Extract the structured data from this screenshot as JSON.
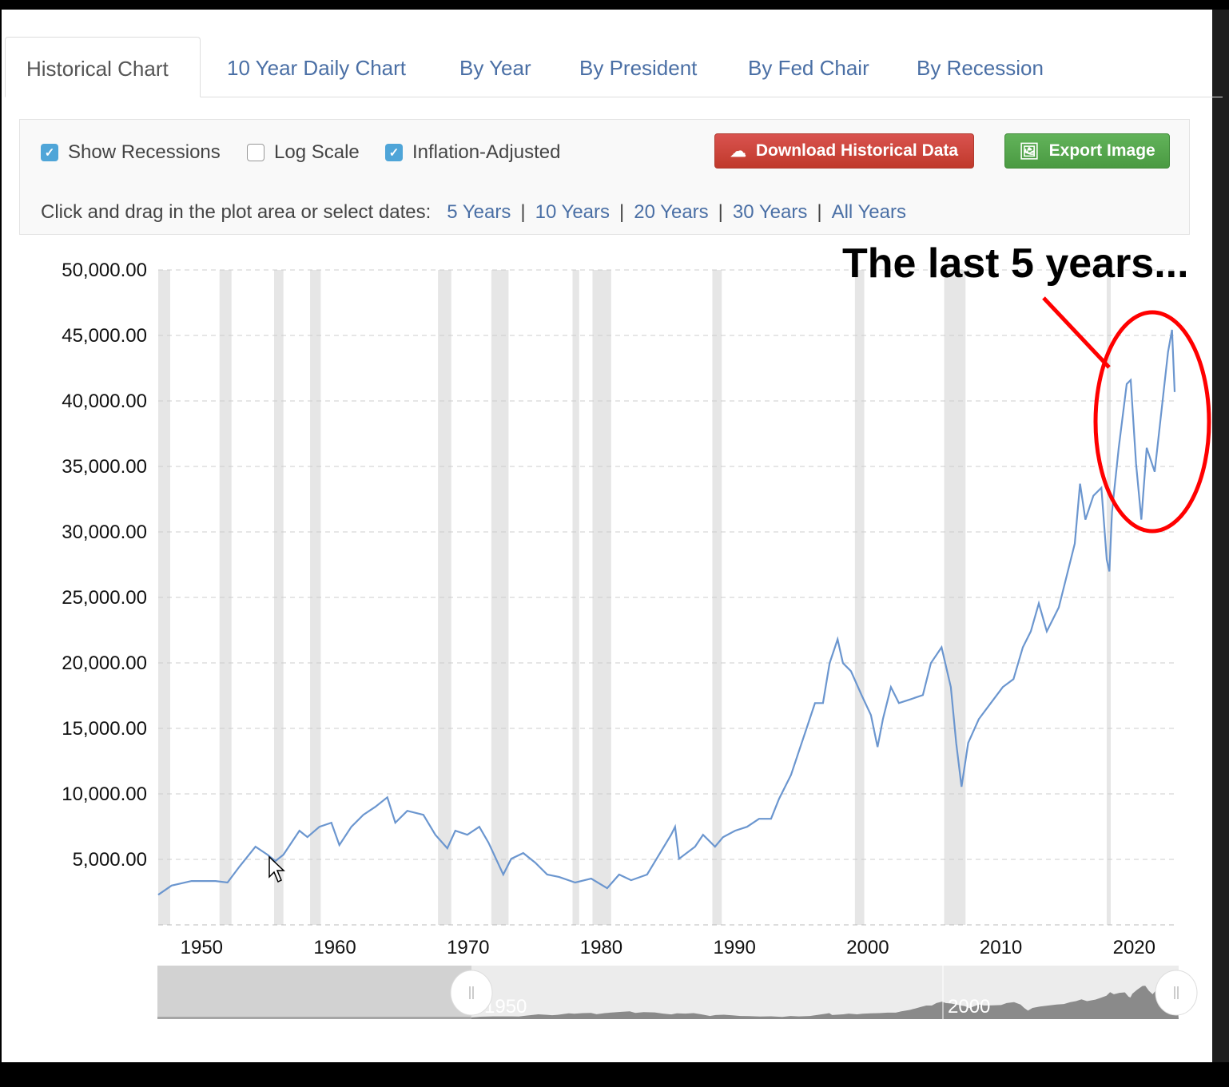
{
  "tabs": [
    {
      "label": "Historical Chart",
      "active": true
    },
    {
      "label": "10 Year Daily Chart",
      "active": false
    },
    {
      "label": "By Year",
      "active": false
    },
    {
      "label": "By President",
      "active": false
    },
    {
      "label": "By Fed Chair",
      "active": false
    },
    {
      "label": "By Recession",
      "active": false
    }
  ],
  "controls": {
    "show_recessions": {
      "label": "Show Recessions",
      "checked": true
    },
    "log_scale": {
      "label": "Log Scale",
      "checked": false
    },
    "inflation_adjusted": {
      "label": "Inflation-Adjusted",
      "checked": true
    },
    "download_label": "Download Historical Data",
    "download_icon": "cloud-download-icon",
    "export_label": "Export Image",
    "export_icon": "image-icon",
    "download_color": "#d9534f",
    "export_color": "#5cb85c",
    "range_prompt": "Click and drag in the plot area or select dates:",
    "ranges": [
      "5 Years",
      "10 Years",
      "20 Years",
      "30 Years",
      "All Years"
    ],
    "separator": "|"
  },
  "annotation": {
    "text": "The last 5 years...",
    "color": "#ff0000"
  },
  "navigator": {
    "labels": [
      "1950",
      "2000"
    ]
  },
  "chart_data": {
    "type": "line",
    "title": "",
    "xlabel": "",
    "ylabel": "",
    "line_color": "#6b96cf",
    "recession_color": "#e6e6e6",
    "grid": "horizontal-dashed",
    "log_scale": false,
    "xlim": [
      1948.9,
      2025.2
    ],
    "ylim": [
      0,
      50000
    ],
    "x_ticks": [
      "1950",
      "1960",
      "1970",
      "1980",
      "1990",
      "2000",
      "2010",
      "2020"
    ],
    "y_ticks": [
      "5,000.00",
      "10,000.00",
      "15,000.00",
      "20,000.00",
      "25,000.00",
      "30,000.00",
      "35,000.00",
      "40,000.00",
      "45,000.00",
      "50,000.00"
    ],
    "recessions": [
      [
        1948.9,
        1949.8
      ],
      [
        1953.5,
        1954.4
      ],
      [
        1957.6,
        1958.3
      ],
      [
        1960.3,
        1961.1
      ],
      [
        1969.9,
        1970.9
      ],
      [
        1973.9,
        1975.2
      ],
      [
        1980.0,
        1980.5
      ],
      [
        1981.5,
        1982.9
      ],
      [
        1990.5,
        1991.2
      ],
      [
        2001.2,
        2001.9
      ],
      [
        2007.9,
        2009.5
      ],
      [
        2020.1,
        2020.3
      ]
    ],
    "series": [
      {
        "points": [
          [
            1948.9,
            2300
          ],
          [
            1949.9,
            3000
          ],
          [
            1951.4,
            3350
          ],
          [
            1953.2,
            3350
          ],
          [
            1954.1,
            3230
          ],
          [
            1955.0,
            4450
          ],
          [
            1956.2,
            5970
          ],
          [
            1957.1,
            5360
          ],
          [
            1957.7,
            4870
          ],
          [
            1958.3,
            5360
          ],
          [
            1959.5,
            7190
          ],
          [
            1960.1,
            6700
          ],
          [
            1961.0,
            7490
          ],
          [
            1961.9,
            7800
          ],
          [
            1962.5,
            6090
          ],
          [
            1963.4,
            7490
          ],
          [
            1964.3,
            8400
          ],
          [
            1965.2,
            9010
          ],
          [
            1966.1,
            9740
          ],
          [
            1966.7,
            7800
          ],
          [
            1967.6,
            8710
          ],
          [
            1968.8,
            8400
          ],
          [
            1969.7,
            6880
          ],
          [
            1970.6,
            5850
          ],
          [
            1971.2,
            7190
          ],
          [
            1972.1,
            6880
          ],
          [
            1973.0,
            7490
          ],
          [
            1973.7,
            6270
          ],
          [
            1974.8,
            3840
          ],
          [
            1975.4,
            5050
          ],
          [
            1976.3,
            5480
          ],
          [
            1977.2,
            4750
          ],
          [
            1978.1,
            3840
          ],
          [
            1979.0,
            3650
          ],
          [
            1980.2,
            3230
          ],
          [
            1981.4,
            3530
          ],
          [
            1982.6,
            2800
          ],
          [
            1983.5,
            3840
          ],
          [
            1984.4,
            3410
          ],
          [
            1985.6,
            3840
          ],
          [
            1986.5,
            5360
          ],
          [
            1987.4,
            6880
          ],
          [
            1987.7,
            7490
          ],
          [
            1988.0,
            5050
          ],
          [
            1989.2,
            5970
          ],
          [
            1989.8,
            6880
          ],
          [
            1990.7,
            5970
          ],
          [
            1991.3,
            6700
          ],
          [
            1992.2,
            7190
          ],
          [
            1993.1,
            7490
          ],
          [
            1994.0,
            8100
          ],
          [
            1994.9,
            8100
          ],
          [
            1995.5,
            9620
          ],
          [
            1996.4,
            11450
          ],
          [
            1997.0,
            13280
          ],
          [
            1997.6,
            15100
          ],
          [
            1998.2,
            16930
          ],
          [
            1998.8,
            16930
          ],
          [
            1999.3,
            19980
          ],
          [
            1999.9,
            21800
          ],
          [
            2000.3,
            19980
          ],
          [
            2000.9,
            19370
          ],
          [
            2001.7,
            17540
          ],
          [
            2002.4,
            16020
          ],
          [
            2002.9,
            13580
          ],
          [
            2003.3,
            15710
          ],
          [
            2003.9,
            18150
          ],
          [
            2004.5,
            16930
          ],
          [
            2005.4,
            17230
          ],
          [
            2006.3,
            17540
          ],
          [
            2006.9,
            19980
          ],
          [
            2007.7,
            21190
          ],
          [
            2008.4,
            18150
          ],
          [
            2008.8,
            13890
          ],
          [
            2009.2,
            10540
          ],
          [
            2009.7,
            13890
          ],
          [
            2010.5,
            15710
          ],
          [
            2011.4,
            16930
          ],
          [
            2012.3,
            18150
          ],
          [
            2013.1,
            18760
          ],
          [
            2013.8,
            21190
          ],
          [
            2014.4,
            22410
          ],
          [
            2015.0,
            24540
          ],
          [
            2015.6,
            22410
          ],
          [
            2016.5,
            24240
          ],
          [
            2017.1,
            26670
          ],
          [
            2017.7,
            29110
          ],
          [
            2018.1,
            33680
          ],
          [
            2018.5,
            30940
          ],
          [
            2019.1,
            32760
          ],
          [
            2019.7,
            33370
          ],
          [
            2020.1,
            27890
          ],
          [
            2020.3,
            26980
          ],
          [
            2020.5,
            31550
          ],
          [
            2021.0,
            36420
          ],
          [
            2021.6,
            41290
          ],
          [
            2021.9,
            41590
          ],
          [
            2022.3,
            35200
          ],
          [
            2022.7,
            30940
          ],
          [
            2023.1,
            36420
          ],
          [
            2023.7,
            34590
          ],
          [
            2024.3,
            40070
          ],
          [
            2024.7,
            43730
          ],
          [
            2025.0,
            45430
          ],
          [
            2025.2,
            40680
          ]
        ]
      }
    ]
  }
}
